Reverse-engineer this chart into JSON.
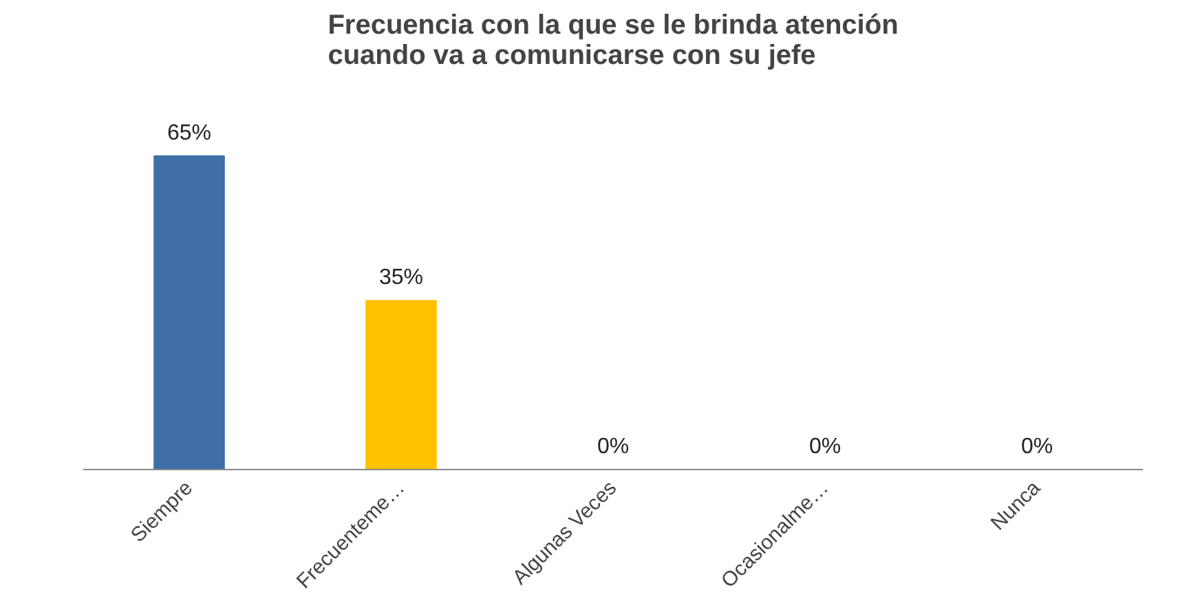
{
  "chart_data": {
    "type": "bar",
    "title": "Frecuencia con la que se le brinda atención\ncuando va a comunicarse con su jefe",
    "categories": [
      "Siempre",
      "Frecuenteme…",
      "Algunas Veces",
      "Ocasionalme…",
      "Nunca"
    ],
    "values": [
      65,
      35,
      0,
      0,
      0
    ],
    "colors": [
      "#3f6ea8",
      "#ffc000",
      "#3f6ea8",
      "#3f6ea8",
      "#3f6ea8"
    ],
    "value_labels": [
      "65%",
      "35%",
      "0%",
      "0%",
      "0%"
    ],
    "grid": false
  }
}
